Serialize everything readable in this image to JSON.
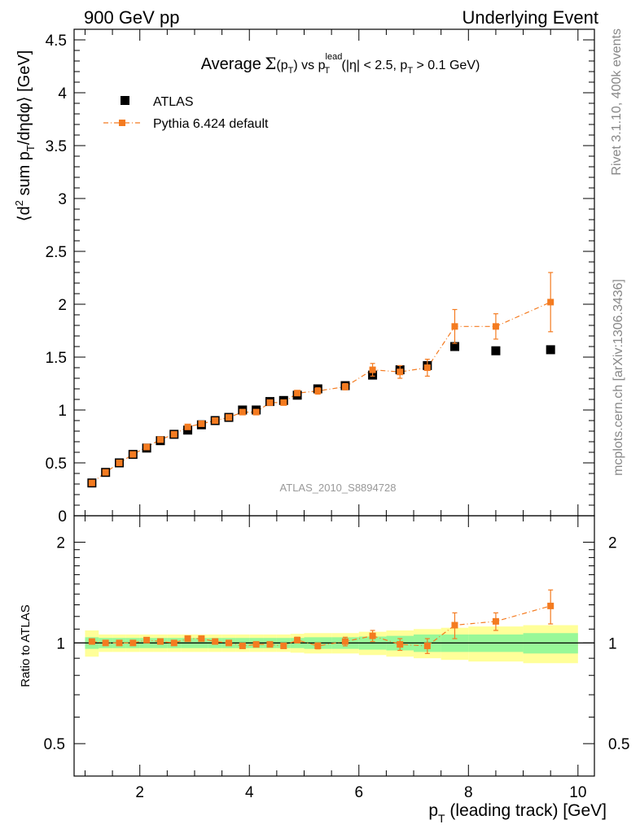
{
  "header": {
    "left": "900 GeV pp",
    "right": "Underlying Event"
  },
  "side_labels": {
    "rivet": "Rivet 3.1.10,  400k events",
    "mcplots": "mcplots.cern.ch [arXiv:1306.3436]"
  },
  "chart_data": [
    {
      "type": "scatter",
      "title": "Average Σ(pT) vs pT^lead (|η| < 2.5, pT > 0.1 GeV)",
      "title_parts": {
        "word": "Average",
        "sigma": "Σ",
        "open": "(p",
        "T": "T",
        "close": ")",
        "vs": "vs p",
        "lead": "lead",
        "cond_a": "(|η| < 2.5, p",
        "cond_b": " > 0.1 GeV)"
      },
      "ylabel": "⟨d² sum pT/dηdφ⟩ [GeV]",
      "ylabel_parts": {
        "a": "⟨d",
        "sup2": "2",
        "b": " sum p",
        "T": "T",
        "c": "/dηdφ⟩ [GeV]"
      },
      "watermark": "ATLAS_2010_S8894728",
      "xlim": [
        0.8,
        10.3
      ],
      "ylim": [
        0,
        4.6
      ],
      "yticks": [
        0,
        0.5,
        1,
        1.5,
        2,
        2.5,
        3,
        3.5,
        4,
        4.5
      ],
      "legend_position": "top-left",
      "series": [
        {
          "name": "ATLAS",
          "color": "#000000",
          "marker": "square",
          "x": [
            1.125,
            1.375,
            1.625,
            1.875,
            2.125,
            2.375,
            2.625,
            2.875,
            3.125,
            3.375,
            3.625,
            3.875,
            4.125,
            4.375,
            4.625,
            4.875,
            5.25,
            5.75,
            6.25,
            6.75,
            7.25,
            7.75,
            8.5,
            9.5
          ],
          "y": [
            0.31,
            0.41,
            0.5,
            0.58,
            0.64,
            0.71,
            0.77,
            0.81,
            0.86,
            0.9,
            0.93,
            1.0,
            1.0,
            1.08,
            1.09,
            1.14,
            1.2,
            1.23,
            1.33,
            1.38,
            1.42,
            1.6,
            1.56,
            1.57
          ]
        },
        {
          "name": "Pythia 6.424 default",
          "color": "#f47b20",
          "marker": "square",
          "line": "dash-dot",
          "x": [
            1.125,
            1.375,
            1.625,
            1.875,
            2.125,
            2.375,
            2.625,
            2.875,
            3.125,
            3.375,
            3.625,
            3.875,
            4.125,
            4.375,
            4.625,
            4.875,
            5.25,
            5.75,
            6.25,
            6.75,
            7.25,
            7.75,
            8.5,
            9.5
          ],
          "y": [
            0.31,
            0.41,
            0.5,
            0.58,
            0.65,
            0.72,
            0.77,
            0.84,
            0.87,
            0.9,
            0.93,
            0.98,
            0.98,
            1.07,
            1.07,
            1.16,
            1.18,
            1.22,
            1.38,
            1.36,
            1.4,
            1.79,
            1.79,
            2.02
          ],
          "yerr": [
            0.01,
            0.01,
            0.01,
            0.01,
            0.01,
            0.01,
            0.01,
            0.01,
            0.01,
            0.01,
            0.01,
            0.01,
            0.01,
            0.01,
            0.01,
            0.02,
            0.03,
            0.03,
            0.06,
            0.06,
            0.08,
            0.16,
            0.12,
            0.28
          ]
        }
      ]
    },
    {
      "type": "scatter",
      "ylabel": "Ratio to ATLAS",
      "xlabel": "pT (leading track) [GeV]",
      "xlabel_parts": {
        "a": "p",
        "T": "T",
        "b": " (leading track) [GeV]"
      },
      "xlim": [
        0.8,
        10.3
      ],
      "ylim": [
        0.4,
        2.4
      ],
      "yscale": "log",
      "yticks": [
        0.5,
        1,
        2
      ],
      "xticks": [
        2,
        4,
        6,
        8,
        10
      ],
      "reference_line": 1,
      "bands": {
        "colors": {
          "inner": "#98f898",
          "outer": "#ffff99"
        },
        "x_edges": [
          1.0,
          1.25,
          1.5,
          1.75,
          2.0,
          2.25,
          2.5,
          2.75,
          3.0,
          3.25,
          3.5,
          3.75,
          4.0,
          4.25,
          4.5,
          4.75,
          5.0,
          5.5,
          6.0,
          6.5,
          7.0,
          7.5,
          8.0,
          9.0,
          10.0
        ],
        "inner_halfwidth": [
          0.04,
          0.035,
          0.035,
          0.035,
          0.035,
          0.035,
          0.035,
          0.035,
          0.035,
          0.035,
          0.035,
          0.035,
          0.035,
          0.035,
          0.035,
          0.035,
          0.04,
          0.04,
          0.045,
          0.05,
          0.06,
          0.06,
          0.06,
          0.07
        ],
        "outer_halfwidth": [
          0.09,
          0.06,
          0.06,
          0.06,
          0.06,
          0.06,
          0.06,
          0.06,
          0.06,
          0.06,
          0.06,
          0.06,
          0.06,
          0.06,
          0.06,
          0.065,
          0.07,
          0.07,
          0.08,
          0.09,
          0.1,
          0.11,
          0.12,
          0.13
        ]
      },
      "series": [
        {
          "name": "Pythia 6.424 default",
          "color": "#f47b20",
          "x": [
            1.125,
            1.375,
            1.625,
            1.875,
            2.125,
            2.375,
            2.625,
            2.875,
            3.125,
            3.375,
            3.625,
            3.875,
            4.125,
            4.375,
            4.625,
            4.875,
            5.25,
            5.75,
            6.25,
            6.75,
            7.25,
            7.75,
            8.5,
            9.5
          ],
          "y": [
            1.01,
            1.0,
            1.0,
            1.0,
            1.02,
            1.01,
            1.0,
            1.03,
            1.03,
            1.01,
            1.0,
            0.98,
            0.99,
            0.99,
            0.98,
            1.02,
            0.98,
            1.01,
            1.05,
            0.99,
            0.98,
            1.13,
            1.16,
            1.29
          ],
          "yerr": [
            0.01,
            0.01,
            0.01,
            0.01,
            0.01,
            0.01,
            0.01,
            0.01,
            0.01,
            0.01,
            0.01,
            0.01,
            0.01,
            0.01,
            0.01,
            0.02,
            0.02,
            0.03,
            0.04,
            0.04,
            0.05,
            0.1,
            0.07,
            0.15
          ]
        }
      ]
    }
  ]
}
